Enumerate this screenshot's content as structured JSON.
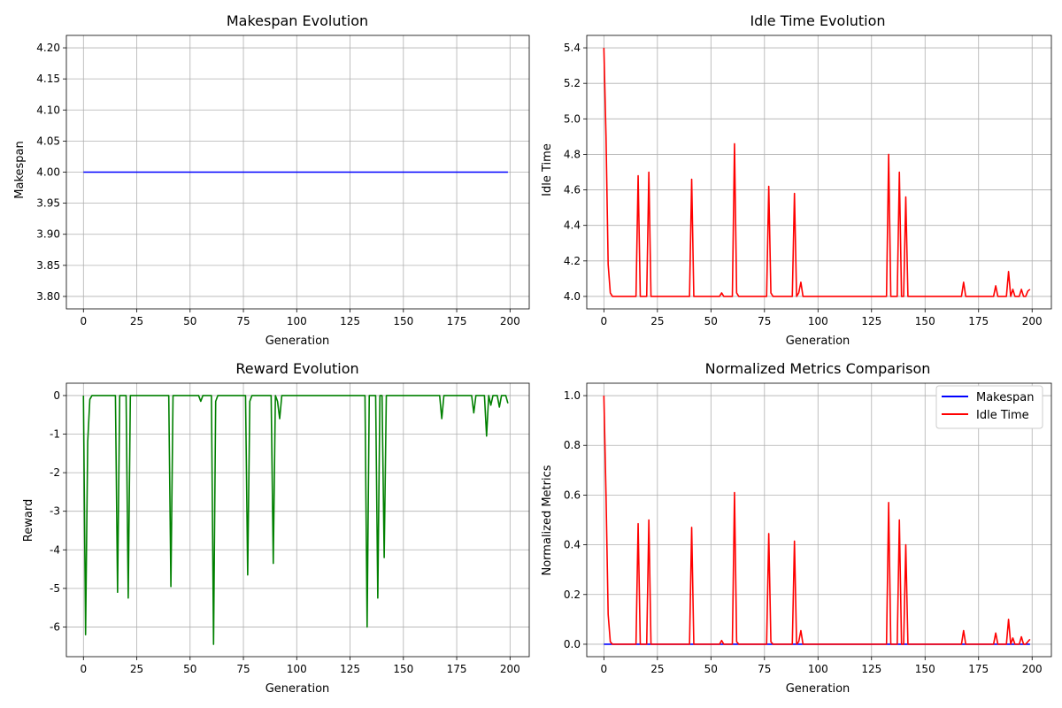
{
  "chart_data": [
    {
      "type": "line",
      "title": "Makespan Evolution",
      "xlabel": "Generation",
      "ylabel": "Makespan",
      "xlim": [
        -8,
        209
      ],
      "ylim": [
        3.78,
        4.22
      ],
      "xticks": [
        0,
        25,
        50,
        75,
        100,
        125,
        150,
        175,
        200
      ],
      "yticks": [
        3.8,
        3.85,
        3.9,
        3.95,
        4.0,
        4.05,
        4.1,
        4.15,
        4.2
      ],
      "ytick_decimals": 2,
      "grid": true,
      "legend": false,
      "series": [
        {
          "color": "#0000ff",
          "baseline": 4.0,
          "n": 200,
          "spikes": []
        }
      ]
    },
    {
      "type": "line",
      "title": "Idle Time Evolution",
      "xlabel": "Generation",
      "ylabel": "Idle Time",
      "xlim": [
        -8,
        209
      ],
      "ylim": [
        3.93,
        5.47
      ],
      "xticks": [
        0,
        25,
        50,
        75,
        100,
        125,
        150,
        175,
        200
      ],
      "yticks": [
        4.0,
        4.2,
        4.4,
        4.6,
        4.8,
        5.0,
        5.2,
        5.4
      ],
      "ytick_decimals": 1,
      "grid": true,
      "legend": false,
      "series": [
        {
          "color": "#ff0000",
          "baseline": 4.0,
          "n": 200,
          "spikes": [
            [
              0,
              5.4
            ],
            [
              1,
              4.9
            ],
            [
              2,
              4.18
            ],
            [
              3,
              4.02
            ],
            [
              16,
              4.68
            ],
            [
              21,
              4.7
            ],
            [
              41,
              4.66
            ],
            [
              55,
              4.02
            ],
            [
              61,
              4.86
            ],
            [
              62,
              4.02
            ],
            [
              77,
              4.62
            ],
            [
              78,
              4.02
            ],
            [
              89,
              4.58
            ],
            [
              91,
              4.02
            ],
            [
              92,
              4.08
            ],
            [
              133,
              4.8
            ],
            [
              138,
              4.7
            ],
            [
              141,
              4.56
            ],
            [
              168,
              4.08
            ],
            [
              183,
              4.06
            ],
            [
              189,
              4.14
            ],
            [
              191,
              4.04
            ],
            [
              195,
              4.04
            ],
            [
              198,
              4.03
            ],
            [
              199,
              4.04
            ]
          ]
        }
      ]
    },
    {
      "type": "line",
      "title": "Reward Evolution",
      "xlabel": "Generation",
      "ylabel": "Reward",
      "xlim": [
        -8,
        209
      ],
      "ylim": [
        -6.77,
        0.32
      ],
      "xticks": [
        0,
        25,
        50,
        75,
        100,
        125,
        150,
        175,
        200
      ],
      "yticks": [
        -6,
        -5,
        -4,
        -3,
        -2,
        -1,
        0
      ],
      "ytick_decimals": 0,
      "grid": true,
      "legend": false,
      "series": [
        {
          "color": "#008000",
          "baseline": 0.0,
          "n": 200,
          "spikes": [
            [
              1,
              -6.2
            ],
            [
              2,
              -1.2
            ],
            [
              3,
              -0.1
            ],
            [
              16,
              -5.1
            ],
            [
              21,
              -5.25
            ],
            [
              41,
              -4.95
            ],
            [
              55,
              -0.15
            ],
            [
              61,
              -6.45
            ],
            [
              62,
              -0.15
            ],
            [
              77,
              -4.65
            ],
            [
              78,
              -0.15
            ],
            [
              89,
              -4.35
            ],
            [
              91,
              -0.15
            ],
            [
              92,
              -0.6
            ],
            [
              133,
              -6.0
            ],
            [
              138,
              -5.25
            ],
            [
              141,
              -4.2
            ],
            [
              168,
              -0.6
            ],
            [
              183,
              -0.45
            ],
            [
              189,
              -1.05
            ],
            [
              191,
              -0.25
            ],
            [
              195,
              -0.3
            ],
            [
              199,
              -0.2
            ]
          ]
        }
      ]
    },
    {
      "type": "line",
      "title": "Normalized Metrics Comparison",
      "xlabel": "Generation",
      "ylabel": "Normalized Metrics",
      "xlim": [
        -8,
        209
      ],
      "ylim": [
        -0.05,
        1.05
      ],
      "xticks": [
        0,
        25,
        50,
        75,
        100,
        125,
        150,
        175,
        200
      ],
      "yticks": [
        0.0,
        0.2,
        0.4,
        0.6,
        0.8,
        1.0
      ],
      "ytick_decimals": 1,
      "grid": true,
      "legend": true,
      "legend_location": "top-right",
      "series": [
        {
          "name": "Makespan",
          "color": "#0000ff",
          "baseline": 0.0,
          "n": 200,
          "spikes": []
        },
        {
          "name": "Idle Time",
          "color": "#ff0000",
          "baseline": 0.0,
          "n": 200,
          "spikes": [
            [
              0,
              1.0
            ],
            [
              1,
              0.6
            ],
            [
              2,
              0.12
            ],
            [
              3,
              0.01
            ],
            [
              16,
              0.485
            ],
            [
              21,
              0.5
            ],
            [
              41,
              0.47
            ],
            [
              55,
              0.015
            ],
            [
              61,
              0.61
            ],
            [
              62,
              0.01
            ],
            [
              77,
              0.445
            ],
            [
              78,
              0.01
            ],
            [
              89,
              0.415
            ],
            [
              91,
              0.01
            ],
            [
              92,
              0.055
            ],
            [
              133,
              0.57
            ],
            [
              138,
              0.5
            ],
            [
              141,
              0.4
            ],
            [
              168,
              0.055
            ],
            [
              183,
              0.045
            ],
            [
              189,
              0.1
            ],
            [
              191,
              0.025
            ],
            [
              195,
              0.03
            ],
            [
              198,
              0.01
            ],
            [
              199,
              0.02
            ]
          ]
        }
      ]
    }
  ]
}
